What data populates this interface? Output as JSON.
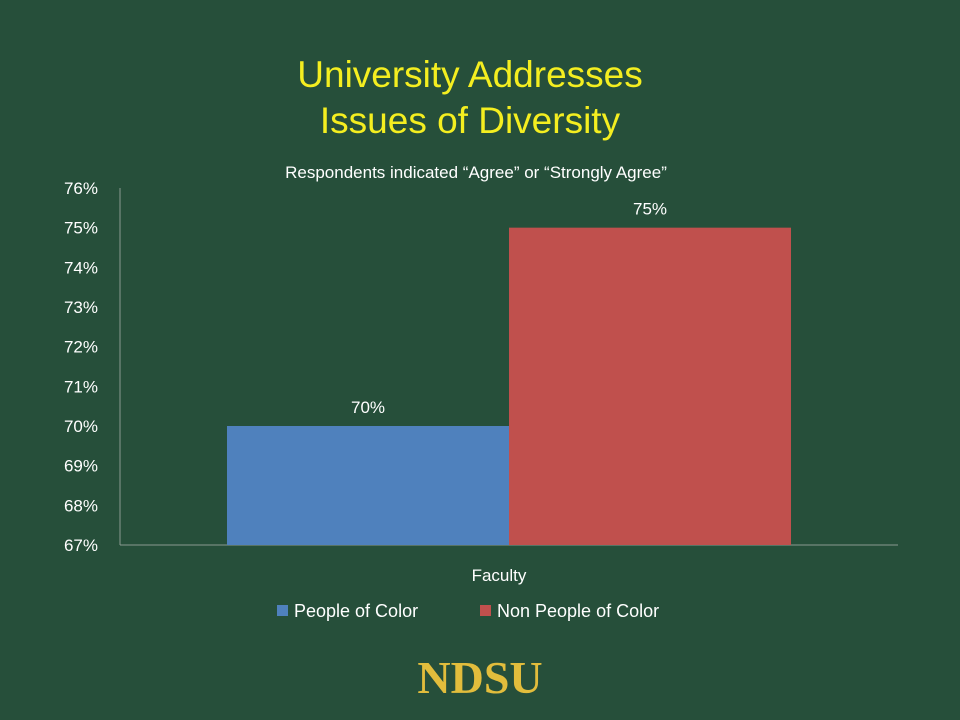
{
  "slide": {
    "title_line1": "University Addresses",
    "title_line2": "Issues of Diversity",
    "logo_text": "NDSU"
  },
  "colors": {
    "background": "#264f3a",
    "title": "#f4ee20",
    "text": "#ffffff",
    "series_1": "#4f81bd",
    "series_2": "#c0504d",
    "logo": "#e2bd3c"
  },
  "chart_data": {
    "type": "bar",
    "title": "Respondents indicated “Agree” or “Strongly Agree”",
    "categories": [
      "Faculty"
    ],
    "series": [
      {
        "name": "People of Color",
        "values": [
          70
        ],
        "label": "70%",
        "color": "#4f81bd"
      },
      {
        "name": "Non People of Color",
        "values": [
          75
        ],
        "label": "75%",
        "color": "#c0504d"
      }
    ],
    "ylim": [
      67,
      76
    ],
    "y_ticks": [
      "67%",
      "68%",
      "69%",
      "70%",
      "71%",
      "72%",
      "73%",
      "74%",
      "75%",
      "76%"
    ],
    "xlabel": "",
    "ylabel": "",
    "grid": false,
    "legend_position": "bottom"
  }
}
